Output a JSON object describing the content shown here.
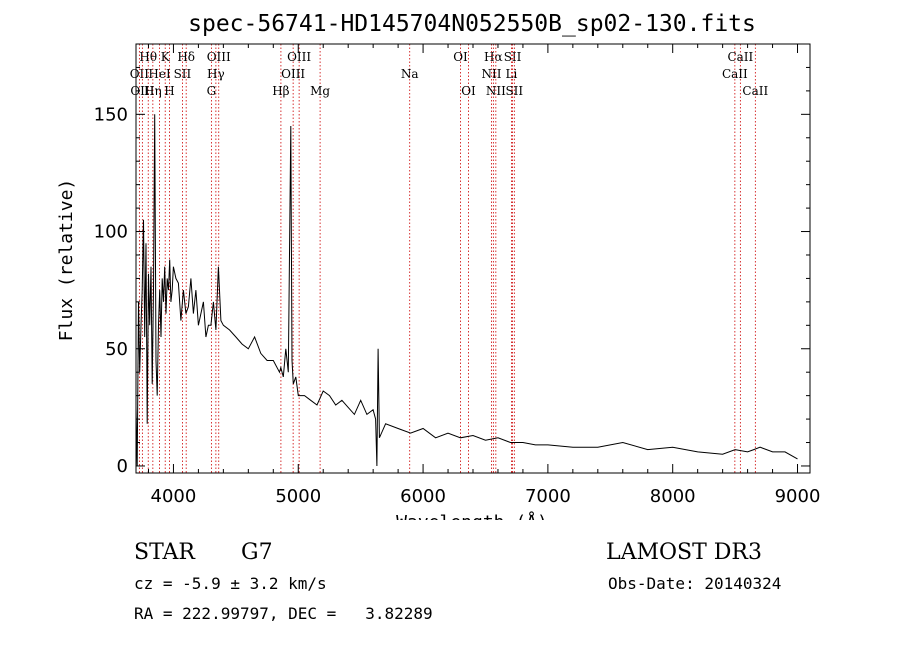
{
  "chart_data": {
    "type": "line",
    "title": "spec-56741-HD145704N052550B_sp02-130.fits",
    "xlabel": "Wavelength (Å)",
    "ylabel": "Flux (relative)",
    "xlim": [
      3700,
      9100
    ],
    "ylim": [
      -3,
      180
    ],
    "xticks": [
      4000,
      5000,
      6000,
      7000,
      8000,
      9000
    ],
    "yticks": [
      0,
      50,
      100,
      150
    ],
    "line_color": "#000000",
    "marker_color": "#cc0000",
    "spectrum": {
      "name": "flux",
      "x": [
        3700,
        3710,
        3720,
        3730,
        3740,
        3750,
        3760,
        3770,
        3780,
        3790,
        3800,
        3810,
        3820,
        3830,
        3840,
        3850,
        3860,
        3870,
        3880,
        3890,
        3900,
        3910,
        3920,
        3930,
        3940,
        3950,
        3960,
        3970,
        3980,
        3990,
        4000,
        4020,
        4040,
        4060,
        4080,
        4100,
        4120,
        4140,
        4160,
        4180,
        4200,
        4220,
        4240,
        4260,
        4280,
        4300,
        4320,
        4340,
        4360,
        4380,
        4400,
        4450,
        4500,
        4550,
        4600,
        4650,
        4700,
        4750,
        4800,
        4850,
        4860,
        4880,
        4900,
        4920,
        4940,
        4950,
        4960,
        4980,
        5000,
        5050,
        5100,
        5150,
        5200,
        5250,
        5300,
        5350,
        5400,
        5450,
        5500,
        5550,
        5600,
        5620,
        5630,
        5640,
        5650,
        5700,
        5800,
        5900,
        6000,
        6100,
        6200,
        6300,
        6400,
        6500,
        6600,
        6700,
        6800,
        6900,
        7000,
        7200,
        7400,
        7600,
        7800,
        8000,
        8200,
        8400,
        8500,
        8600,
        8650,
        8700,
        8800,
        8900,
        9000
      ],
      "y": [
        25,
        0,
        70,
        40,
        60,
        75,
        105,
        55,
        95,
        18,
        82,
        60,
        85,
        35,
        75,
        150,
        45,
        30,
        60,
        75,
        55,
        80,
        70,
        85,
        65,
        80,
        75,
        88,
        70,
        75,
        85,
        80,
        78,
        62,
        75,
        65,
        68,
        80,
        65,
        75,
        60,
        65,
        70,
        55,
        60,
        60,
        70,
        58,
        85,
        62,
        60,
        58,
        55,
        52,
        50,
        55,
        48,
        45,
        45,
        40,
        42,
        38,
        50,
        40,
        145,
        45,
        35,
        38,
        30,
        30,
        28,
        26,
        32,
        30,
        26,
        28,
        25,
        22,
        28,
        22,
        24,
        20,
        0,
        50,
        12,
        18,
        16,
        14,
        16,
        12,
        14,
        12,
        13,
        11,
        12,
        10,
        10,
        9,
        9,
        8,
        8,
        10,
        7,
        8,
        6,
        5,
        7,
        6,
        7,
        8,
        6,
        6,
        3
      ]
    },
    "line_markers": [
      {
        "label": "Hθ",
        "x": 3798,
        "row": 0
      },
      {
        "label": "OII",
        "x": 3727,
        "row": 1
      },
      {
        "label": "OIII",
        "x": 3751,
        "row": 2
      },
      {
        "label": "Hη",
        "x": 3835,
        "row": 2
      },
      {
        "label": "HeI",
        "x": 3889,
        "row": 1
      },
      {
        "label": "K",
        "x": 3934,
        "row": 0
      },
      {
        "label": "H",
        "x": 3968,
        "row": 2
      },
      {
        "label": "SII",
        "x": 4072,
        "row": 1
      },
      {
        "label": "Hδ",
        "x": 4102,
        "row": 0
      },
      {
        "label": "OIII",
        "x": 4363,
        "row": 0
      },
      {
        "label": "Hγ",
        "x": 4340,
        "row": 1
      },
      {
        "label": "G",
        "x": 4304,
        "row": 2
      },
      {
        "label": "Hβ",
        "x": 4861,
        "row": 2
      },
      {
        "label": "OIII",
        "x": 5007,
        "row": 0
      },
      {
        "label": "OIII",
        "x": 4959,
        "row": 1
      },
      {
        "label": "Mg",
        "x": 5175,
        "row": 2
      },
      {
        "label": "Na",
        "x": 5893,
        "row": 1
      },
      {
        "label": "OI",
        "x": 6300,
        "row": 0
      },
      {
        "label": "OI",
        "x": 6364,
        "row": 2
      },
      {
        "label": "Hα",
        "x": 6563,
        "row": 0
      },
      {
        "label": "SII",
        "x": 6717,
        "row": 0
      },
      {
        "label": "NII",
        "x": 6548,
        "row": 1
      },
      {
        "label": "Li",
        "x": 6708,
        "row": 1
      },
      {
        "label": "NII",
        "x": 6583,
        "row": 2
      },
      {
        "label": "SII",
        "x": 6731,
        "row": 2
      },
      {
        "label": "CaII",
        "x": 8542,
        "row": 0
      },
      {
        "label": "CaII",
        "x": 8498,
        "row": 1
      },
      {
        "label": "CaII",
        "x": 8662,
        "row": 2
      }
    ]
  },
  "info": {
    "object_class": "STAR",
    "subclass": "G7",
    "survey": "LAMOST DR3",
    "cz": "cz = -5.9 ± 3.2 km/s",
    "obs_date": "Obs-Date: 20140324",
    "coords": "RA = 222.99797, DEC =   3.82289"
  }
}
